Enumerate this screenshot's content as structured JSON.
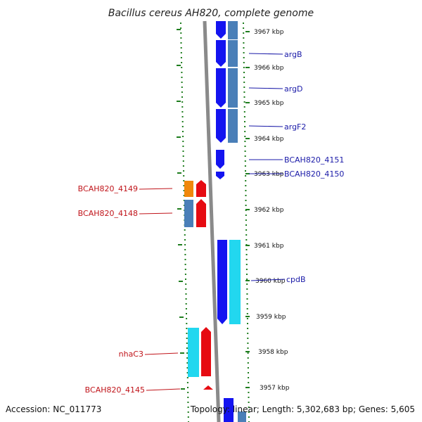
{
  "title": "Bacillus cereus AH820, complete genome",
  "footer": {
    "accession": "Accession: NC_011773",
    "summary": "Topology: linear; Length: 5,302,683 bp; Genes: 5,605"
  },
  "kbp_labels": [
    "3967 kbp",
    "3966 kbp",
    "3965 kbp",
    "3964 kbp",
    "3963 kbp",
    "3962 kbp",
    "3961 kbp",
    "3960 kbp",
    "3959 kbp",
    "3958 kbp",
    "3957 kbp"
  ],
  "genes_right": [
    "argB",
    "argD",
    "argF2",
    "BCAH820_4151",
    "BCAH820_4150",
    "cpdB"
  ],
  "genes_left": [
    "BCAH820_4149",
    "BCAH820_4148",
    "nhaC3",
    "BCAH820_4145"
  ],
  "colors": {
    "blue": "#1414f0",
    "steel": "#4a7fb8",
    "cyan": "#22d7ef",
    "red": "#e60b12",
    "orange": "#f0880c",
    "green": "#1e7d1e",
    "backbone": "#8a8a8a"
  }
}
